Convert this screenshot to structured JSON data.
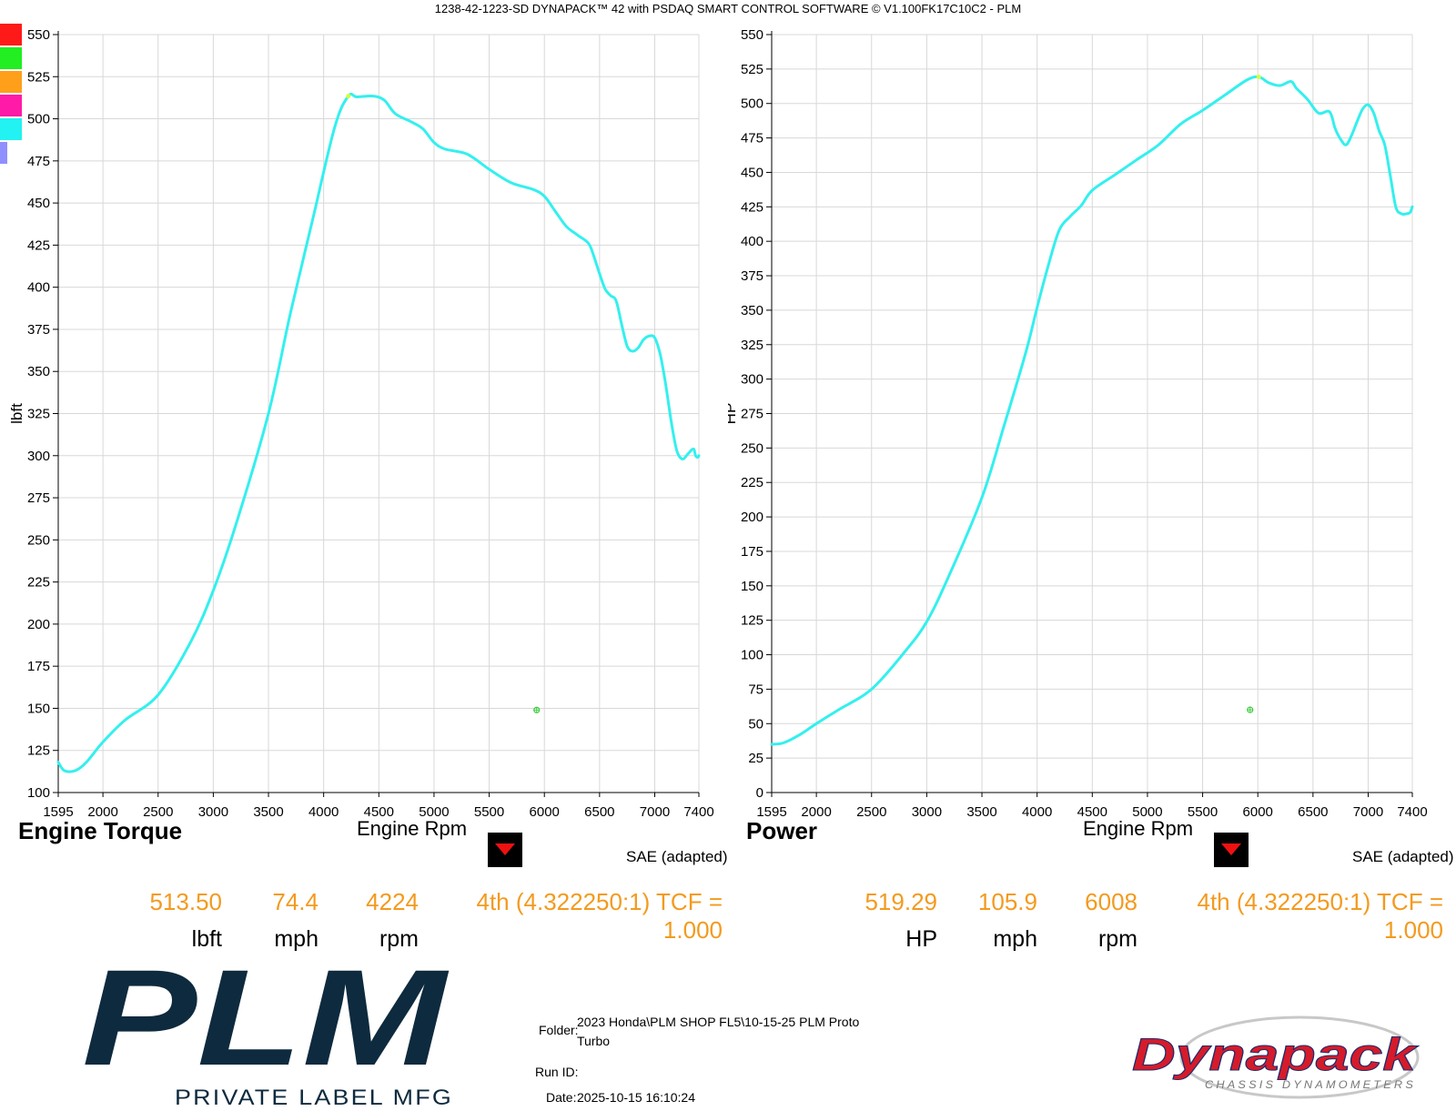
{
  "header": "1238-42-1223-SD DYNAPACK™ 42 with PSDAQ SMART CONTROL SOFTWARE © V1.100FK17C10C2 - PLM",
  "colors": {
    "curve": "#33f0ee",
    "swatches": [
      "#ff1a1a",
      "#22ee22",
      "#ff9f1a",
      "#ff1aa8",
      "#22f2f2",
      "#8f8fff"
    ],
    "readout": "#f39a1e",
    "grid": "#d8d8d8"
  },
  "charts": [
    {
      "title": "Engine Torque",
      "xlabel": "Engine Rpm",
      "ylabel": "lbft",
      "correction": "SAE (adapted)",
      "readout": {
        "value": "513.50",
        "value_unit": "lbft",
        "speed": "74.4",
        "speed_unit": "mph",
        "rpm": "4224",
        "rpm_unit": "rpm",
        "gear": "4th (4.322250:1) TCF = 1.000"
      }
    },
    {
      "title": "Power",
      "xlabel": "Engine Rpm",
      "ylabel": "HP",
      "correction": "SAE (adapted)",
      "readout": {
        "value": "519.29",
        "value_unit": "HP",
        "speed": "105.9",
        "speed_unit": "mph",
        "rpm": "6008",
        "rpm_unit": "rpm",
        "gear": "4th (4.322250:1) TCF = 1.000"
      }
    }
  ],
  "chart_data": [
    {
      "type": "line",
      "title": "Engine Torque",
      "xlabel": "Engine Rpm",
      "ylabel": "lbft",
      "xlim": [
        1595,
        7400
      ],
      "ylim": [
        100,
        550
      ],
      "xticks": [
        1595,
        2000,
        2500,
        3000,
        3500,
        4000,
        4500,
        5000,
        5500,
        6000,
        6500,
        7000,
        7400
      ],
      "yticks": [
        100,
        125,
        150,
        175,
        200,
        225,
        250,
        275,
        300,
        325,
        350,
        375,
        400,
        425,
        450,
        475,
        500,
        525,
        550
      ],
      "grid": true,
      "cursor": {
        "x": 4224,
        "y": 513.5
      },
      "marker": {
        "x": 5930,
        "y": 149
      },
      "series": [
        {
          "x": [
            1595,
            1650,
            1750,
            1850,
            2000,
            2200,
            2500,
            2800,
            3000,
            3200,
            3500,
            3700,
            3900,
            4100,
            4224,
            4300,
            4450,
            4550,
            4650,
            4800,
            4900,
            5000,
            5100,
            5300,
            5500,
            5700,
            5900,
            6000,
            6100,
            6200,
            6300,
            6400,
            6450,
            6500,
            6550,
            6600,
            6650,
            6700,
            6750,
            6800,
            6850,
            6900,
            6950,
            7000,
            7050,
            7100,
            7150,
            7200,
            7250,
            7300,
            7350,
            7370,
            7390,
            7400
          ],
          "y": [
            118,
            113,
            113,
            118,
            130,
            143,
            158,
            190,
            220,
            258,
            325,
            385,
            440,
            495,
            513.5,
            513,
            513.5,
            511,
            503,
            498,
            494,
            486,
            482,
            479,
            470,
            462,
            458,
            454,
            445,
            436,
            431,
            426,
            418,
            408,
            399,
            395,
            392,
            378,
            365,
            362,
            364,
            369,
            371,
            370,
            360,
            342,
            320,
            303,
            298,
            301,
            304,
            300,
            299,
            300
          ]
        }
      ]
    },
    {
      "type": "line",
      "title": "Power",
      "xlabel": "Engine Rpm",
      "ylabel": "HP",
      "xlim": [
        1595,
        7400
      ],
      "ylim": [
        0,
        550
      ],
      "xticks": [
        1595,
        2000,
        2500,
        3000,
        3500,
        4000,
        4500,
        5000,
        5500,
        6000,
        6500,
        7000,
        7400
      ],
      "yticks": [
        0,
        25,
        50,
        75,
        100,
        125,
        150,
        175,
        200,
        225,
        250,
        275,
        300,
        325,
        350,
        375,
        400,
        425,
        450,
        475,
        500,
        525,
        550
      ],
      "grid": true,
      "cursor": {
        "x": 6008,
        "y": 519.29
      },
      "marker": {
        "x": 5930,
        "y": 60
      },
      "series": [
        {
          "x": [
            1595,
            1700,
            1850,
            2000,
            2200,
            2500,
            2800,
            3000,
            3200,
            3500,
            3700,
            3900,
            4000,
            4100,
            4200,
            4300,
            4400,
            4500,
            4700,
            4900,
            5100,
            5300,
            5500,
            5700,
            5900,
            6008,
            6100,
            6200,
            6300,
            6350,
            6450,
            6550,
            6650,
            6700,
            6750,
            6800,
            6850,
            6900,
            6950,
            7000,
            7050,
            7100,
            7150,
            7200,
            7250,
            7300,
            7350,
            7380,
            7400
          ],
          "y": [
            35,
            36,
            42,
            50,
            60,
            75,
            102,
            124,
            157,
            214,
            266,
            320,
            352,
            382,
            408,
            418,
            426,
            437,
            448,
            459,
            470,
            485,
            495,
            506,
            517,
            519.3,
            515,
            513,
            516,
            511,
            503,
            493,
            494,
            482,
            474,
            470,
            477,
            487,
            496,
            499,
            493,
            480,
            470,
            448,
            425,
            420,
            420,
            421,
            425
          ]
        }
      ]
    }
  ],
  "logo_left": {
    "mark": "PLM",
    "sub": "PRIVATE LABEL MFG"
  },
  "info": {
    "folder_label": "Folder:",
    "folder_line1": "2023 Honda\\PLM SHOP FL5\\10-15-25 PLM Proto",
    "folder_line2": "Turbo",
    "runid_label": "Run ID:",
    "date_label": "Date:",
    "date_value": "2025-10-15 16:10:24"
  },
  "logo_right": {
    "mark": "Dynapack",
    "sub": "CHASSIS DYNAMOMETERS"
  }
}
